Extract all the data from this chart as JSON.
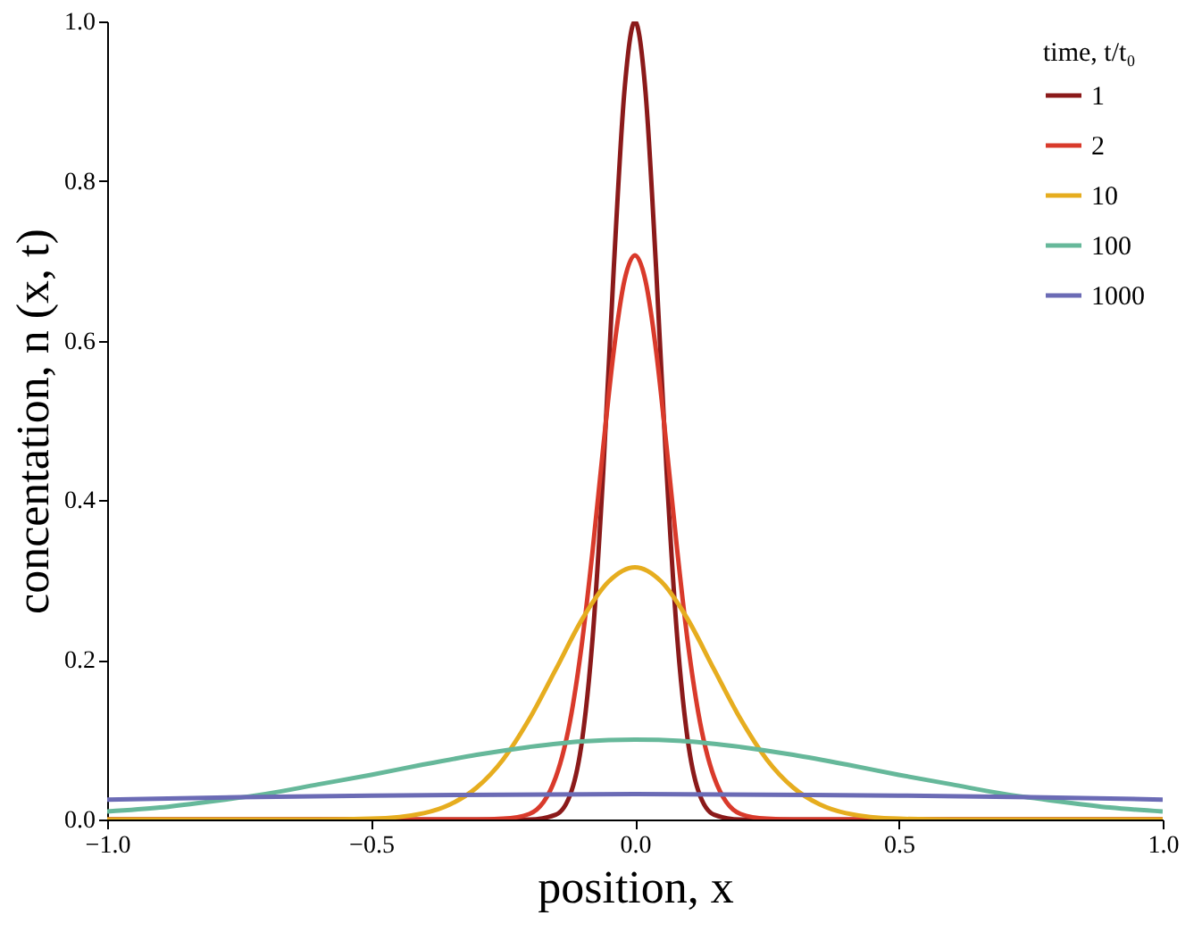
{
  "chart_data": {
    "type": "line",
    "xlabel": "position, x",
    "ylabel": "concentation, n (x, t)",
    "legend_title": "time, t/t₀",
    "legend": "top right",
    "grid": false,
    "line_style": "solid",
    "marker": "none",
    "xlim": [
      -1.0,
      1.0
    ],
    "ylim": [
      0.0,
      1.0
    ],
    "xticks": [
      {
        "value": -1.0,
        "label": "−1.0"
      },
      {
        "value": -0.5,
        "label": "−0.5"
      },
      {
        "value": 0.0,
        "label": "0.0"
      },
      {
        "value": 0.5,
        "label": "0.5"
      },
      {
        "value": 1.0,
        "label": "1.0"
      }
    ],
    "yticks": [
      {
        "value": 0.0,
        "label": "0.0"
      },
      {
        "value": 0.2,
        "label": "0.2"
      },
      {
        "value": 0.4,
        "label": "0.4"
      },
      {
        "value": 0.6,
        "label": "0.6"
      },
      {
        "value": 0.8,
        "label": "0.8"
      },
      {
        "value": 1.0,
        "label": "1.0"
      }
    ],
    "series": [
      {
        "name": "1",
        "color": "#8b1a1a",
        "x": [
          -1.0,
          -0.2,
          -0.15,
          -0.12,
          -0.1,
          -0.08,
          -0.06,
          -0.04,
          -0.02,
          0.0,
          0.02,
          0.04,
          0.06,
          0.08,
          0.1,
          0.12,
          0.15,
          0.2,
          1.0
        ],
        "values": [
          0.0,
          0.0,
          0.006,
          0.036,
          0.1,
          0.229,
          0.436,
          0.692,
          0.912,
          1.0,
          0.912,
          0.692,
          0.436,
          0.229,
          0.1,
          0.036,
          0.006,
          0.0,
          0.0
        ]
      },
      {
        "name": "2",
        "color": "#d93a2b",
        "x": [
          -1.0,
          -0.3,
          -0.25,
          -0.2,
          -0.15,
          -0.12,
          -0.1,
          -0.08,
          -0.06,
          -0.04,
          -0.02,
          0.0,
          0.02,
          0.04,
          0.06,
          0.08,
          0.1,
          0.12,
          0.15,
          0.2,
          0.25,
          0.3,
          1.0
        ],
        "values": [
          0.0,
          0.0,
          0.001,
          0.007,
          0.053,
          0.134,
          0.223,
          0.338,
          0.467,
          0.588,
          0.675,
          0.707,
          0.675,
          0.588,
          0.467,
          0.338,
          0.223,
          0.134,
          0.053,
          0.007,
          0.001,
          0.0,
          0.0
        ]
      },
      {
        "name": "10",
        "color": "#e6ad1f",
        "x": [
          -1.0,
          -0.6,
          -0.5,
          -0.4,
          -0.35,
          -0.3,
          -0.25,
          -0.2,
          -0.15,
          -0.1,
          -0.05,
          0.0,
          0.05,
          0.1,
          0.15,
          0.2,
          0.25,
          0.3,
          0.35,
          0.4,
          0.5,
          0.6,
          1.0
        ],
        "values": [
          0.0,
          0.0,
          0.001,
          0.008,
          0.019,
          0.04,
          0.075,
          0.126,
          0.188,
          0.251,
          0.298,
          0.316,
          0.298,
          0.251,
          0.188,
          0.126,
          0.075,
          0.04,
          0.019,
          0.008,
          0.001,
          0.0,
          0.0
        ]
      },
      {
        "name": "100",
        "color": "#66b89a",
        "x": [
          -1.0,
          -0.9,
          -0.8,
          -0.7,
          -0.6,
          -0.5,
          -0.4,
          -0.3,
          -0.2,
          -0.1,
          0.0,
          0.1,
          0.2,
          0.3,
          0.4,
          0.5,
          0.6,
          0.7,
          0.8,
          0.9,
          1.0
        ],
        "values": [
          0.01,
          0.015,
          0.023,
          0.032,
          0.044,
          0.056,
          0.069,
          0.081,
          0.091,
          0.098,
          0.1,
          0.098,
          0.091,
          0.081,
          0.069,
          0.056,
          0.044,
          0.032,
          0.023,
          0.015,
          0.01
        ]
      },
      {
        "name": "1000",
        "color": "#6b6bb5",
        "x": [
          -1.0,
          -0.75,
          -0.5,
          -0.25,
          0.0,
          0.25,
          0.5,
          0.75,
          1.0
        ],
        "values": [
          0.025,
          0.028,
          0.03,
          0.031,
          0.032,
          0.031,
          0.03,
          0.028,
          0.025
        ]
      }
    ]
  }
}
